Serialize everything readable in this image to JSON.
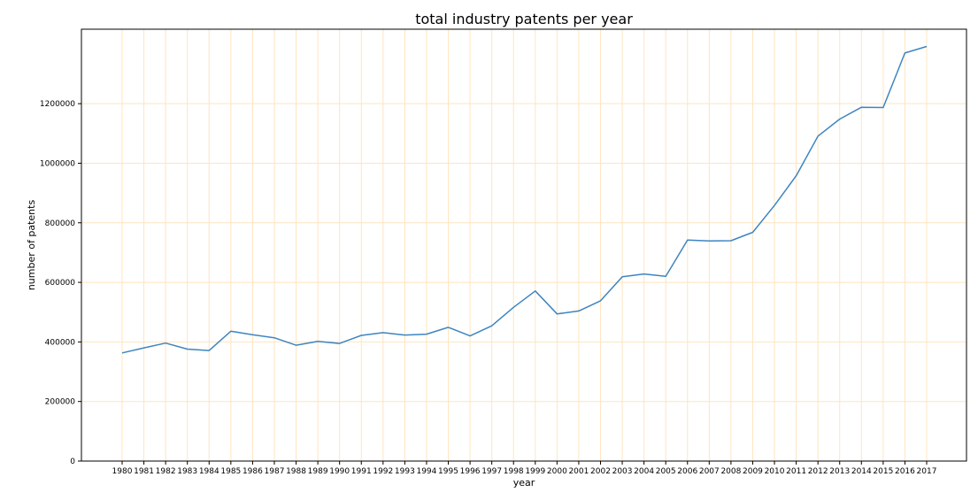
{
  "chart_data": {
    "type": "line",
    "title": "total industry patents per year",
    "xlabel": "year",
    "ylabel": "number of patents",
    "x": [
      "1980",
      "1981",
      "1982",
      "1983",
      "1984",
      "1985",
      "1986",
      "1987",
      "1988",
      "1989",
      "1990",
      "1991",
      "1992",
      "1993",
      "1994",
      "1995",
      "1996",
      "1997",
      "1998",
      "1999",
      "2000",
      "2001",
      "2002",
      "2003",
      "2004",
      "2005",
      "2006",
      "2007",
      "2008",
      "2009",
      "2010",
      "2011",
      "2012",
      "2013",
      "2014",
      "2015",
      "2016",
      "2017"
    ],
    "series": [
      {
        "name": "",
        "color": "#3d85c0",
        "values": [
          363000,
          380000,
          396000,
          376000,
          371000,
          436000,
          424000,
          414000,
          389000,
          402000,
          395000,
          422000,
          431000,
          423000,
          426000,
          449000,
          420000,
          454000,
          516000,
          571000,
          494000,
          504000,
          538000,
          619000,
          628000,
          620000,
          742000,
          739000,
          740000,
          768000,
          858000,
          958000,
          1091000,
          1148000,
          1188000,
          1187000,
          1370000,
          1392000
        ]
      }
    ],
    "yticks": [
      0,
      200000,
      400000,
      600000,
      800000,
      1000000,
      1200000
    ],
    "ytick_labels": [
      "0",
      "200000",
      "400000",
      "600000",
      "800000",
      "1000000",
      "1200000"
    ],
    "ylim": [
      0,
      1450000
    ],
    "grid": true,
    "grid_color": "#ffe4bf",
    "axis_color": "#000000"
  }
}
